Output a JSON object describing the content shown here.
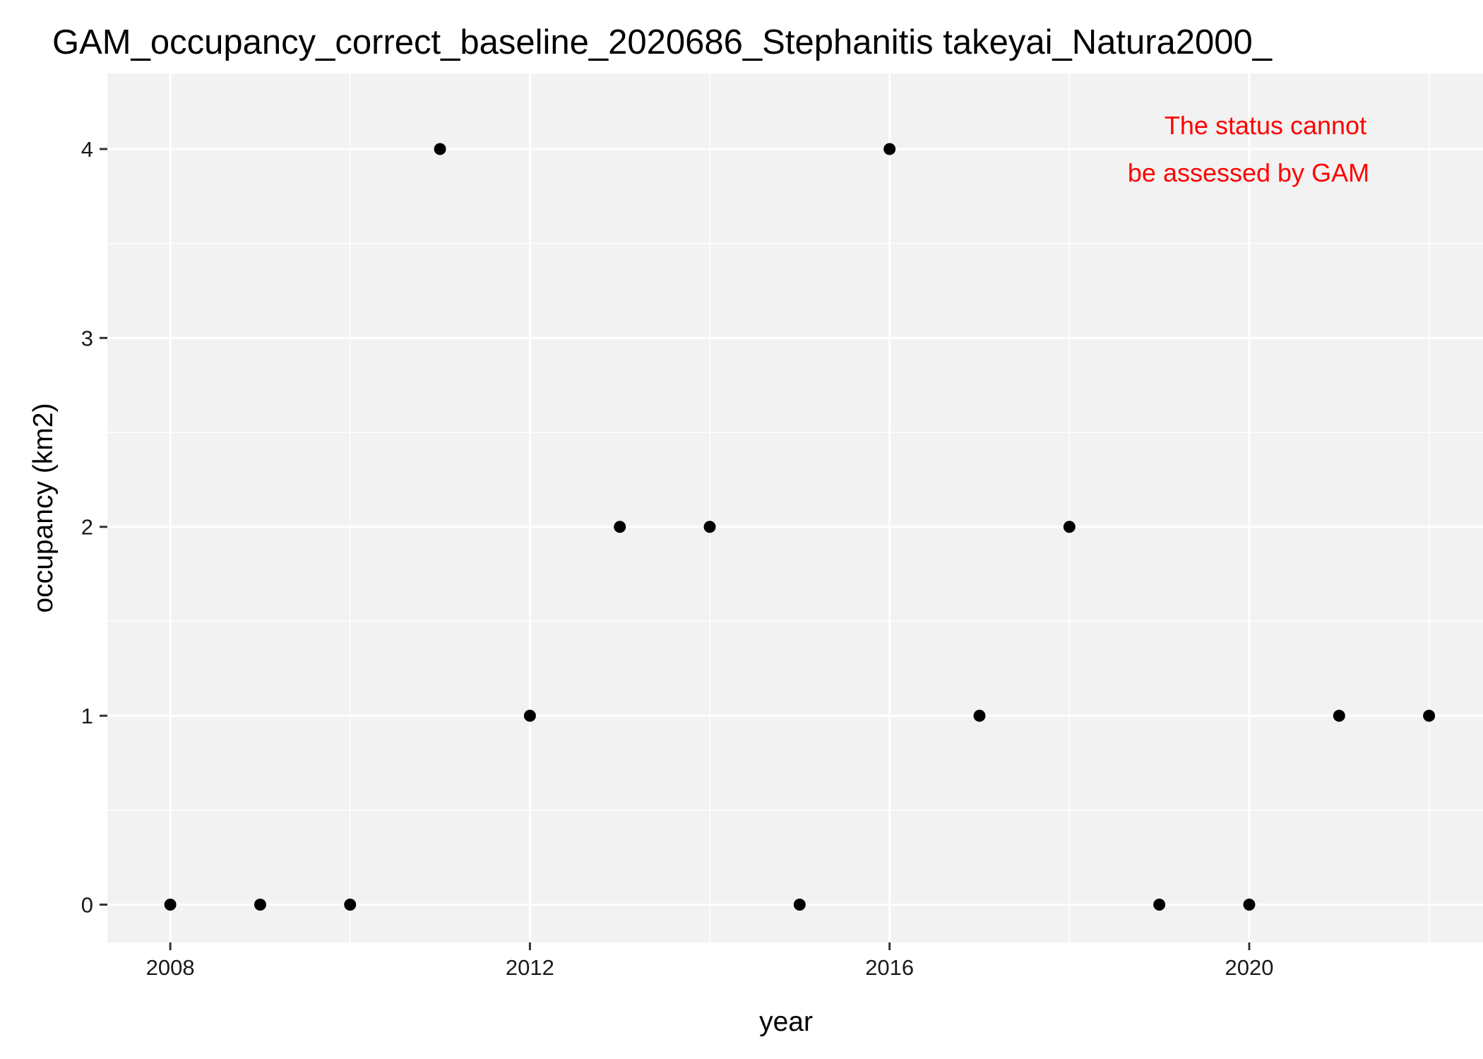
{
  "chart_data": {
    "type": "scatter",
    "title": "GAM_occupancy_correct_baseline_2020686_Stephanitis takeyai_Natura2000_",
    "xlabel": "year",
    "ylabel": "occupancy (km2)",
    "x_ticks": [
      2008,
      2012,
      2016,
      2020
    ],
    "y_ticks": [
      0,
      1,
      2,
      3,
      4
    ],
    "xlim": [
      2007.3,
      2022.6
    ],
    "ylim": [
      -0.2,
      4.4
    ],
    "grid": true,
    "points": [
      {
        "x": 2008,
        "y": 0
      },
      {
        "x": 2009,
        "y": 0
      },
      {
        "x": 2010,
        "y": 0
      },
      {
        "x": 2011,
        "y": 4
      },
      {
        "x": 2012,
        "y": 1
      },
      {
        "x": 2013,
        "y": 2
      },
      {
        "x": 2014,
        "y": 2
      },
      {
        "x": 2015,
        "y": 0
      },
      {
        "x": 2016,
        "y": 4
      },
      {
        "x": 2017,
        "y": 1
      },
      {
        "x": 2018,
        "y": 2
      },
      {
        "x": 2019,
        "y": 0
      },
      {
        "x": 2020,
        "y": 0
      },
      {
        "x": 2021,
        "y": 1
      },
      {
        "x": 2022,
        "y": 1
      }
    ],
    "annotation": {
      "lines": [
        "The status cannot",
        "be assessed by GAM"
      ],
      "color": "#ff0000",
      "position": "top-right"
    },
    "colors": {
      "panel": "#f2f2f2",
      "grid": "#ffffff",
      "point": "#000000"
    }
  }
}
